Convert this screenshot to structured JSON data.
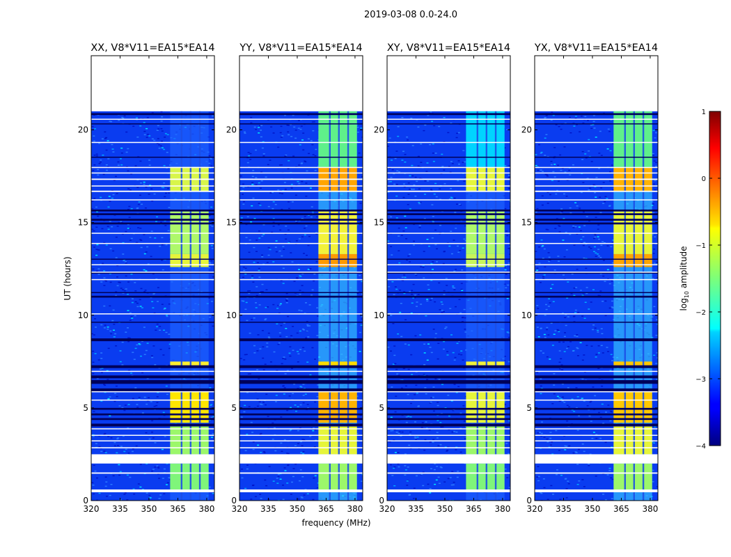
{
  "suptitle": "2019-03-08 0.0-24.0",
  "chart_data": {
    "type": "heatmap",
    "panels": [
      {
        "title": "XX, V8*V11=EA15*EA14",
        "pol": "XX"
      },
      {
        "title": "YY, V8*V11=EA15*EA14",
        "pol": "YY"
      },
      {
        "title": "XY, V8*V11=EA15*EA14",
        "pol": "XY"
      },
      {
        "title": "YX, V8*V11=EA15*EA14",
        "pol": "YX"
      }
    ],
    "xlabel": "frequency (MHz)",
    "ylabel": "UT (hours)",
    "xlim": [
      320,
      384
    ],
    "ylim": [
      0,
      24
    ],
    "xticks": [
      320,
      335,
      350,
      365,
      380
    ],
    "yticks": [
      0,
      5,
      10,
      15,
      20
    ],
    "data_extent_hours": [
      0,
      21
    ],
    "bright_band_mhz": [
      361,
      381
    ],
    "colorbar": {
      "label": "log",
      "label_sub": "10",
      "label_suffix": " amplitude",
      "ticks": [
        -4,
        -3,
        -2,
        -1,
        0,
        1
      ],
      "range": [
        -4,
        1
      ],
      "colormap": "jet"
    }
  }
}
